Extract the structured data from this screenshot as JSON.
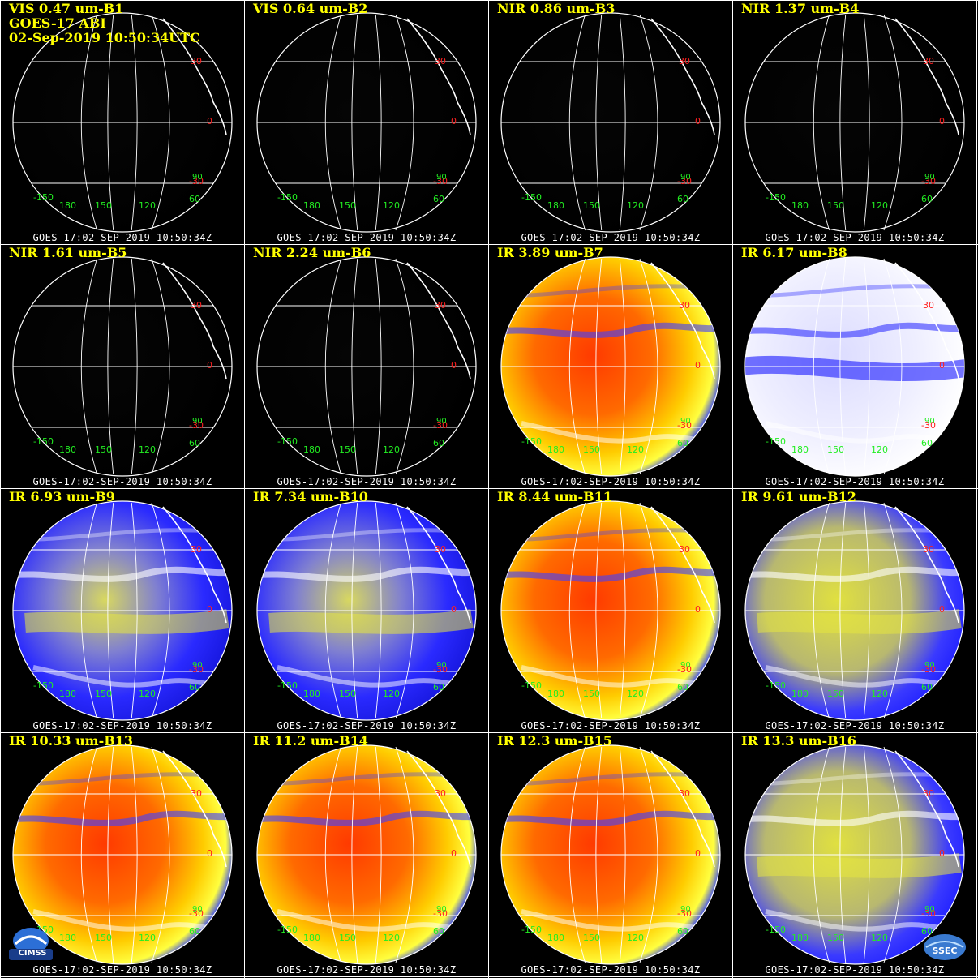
{
  "header": {
    "satellite": "GOES-17 ABI",
    "datetime": "02-Sep-2019 10:50:34UTC"
  },
  "footer_text": "GOES-17:02-SEP-2019 10:50:34Z",
  "panels": [
    {
      "label": "VIS 0.47 um-B1",
      "style": "vis"
    },
    {
      "label": "VIS 0.64 um-B2",
      "style": "vis"
    },
    {
      "label": "NIR 0.86 um-B3",
      "style": "vis"
    },
    {
      "label": "NIR 1.37 um-B4",
      "style": "vis"
    },
    {
      "label": "NIR 1.61 um-B5",
      "style": "vis"
    },
    {
      "label": "NIR 2.24 um-B6",
      "style": "vis"
    },
    {
      "label": "IR 3.89 um-B7",
      "style": "warm"
    },
    {
      "label": "IR 6.17 um-B8",
      "style": "wv-white"
    },
    {
      "label": "IR 6.93 um-B9",
      "style": "wv-blue"
    },
    {
      "label": "IR 7.34 um-B10",
      "style": "wv-blue"
    },
    {
      "label": "IR 8.44 um-B11",
      "style": "warm"
    },
    {
      "label": "IR 9.61 um-B12",
      "style": "ozone"
    },
    {
      "label": "IR 10.33 um-B13",
      "style": "warm"
    },
    {
      "label": "IR 11.2 um-B14",
      "style": "warm"
    },
    {
      "label": "IR 12.3 um-B15",
      "style": "warm"
    },
    {
      "label": "IR 13.3 um-B16",
      "style": "ozone"
    }
  ],
  "grid_labels": {
    "latitudes": [
      "30",
      "0",
      "-30"
    ],
    "longitudes": [
      "-150",
      "180",
      "150",
      "120",
      "60"
    ],
    "corner_label": "90"
  },
  "logos": {
    "left": "CIMSS",
    "right": "SSEC"
  },
  "colors": {
    "title": "#ffff00",
    "lat_label": "#ff2020",
    "lon_label": "#22ee22",
    "gridline": "#ffffff",
    "background": "#000000"
  }
}
